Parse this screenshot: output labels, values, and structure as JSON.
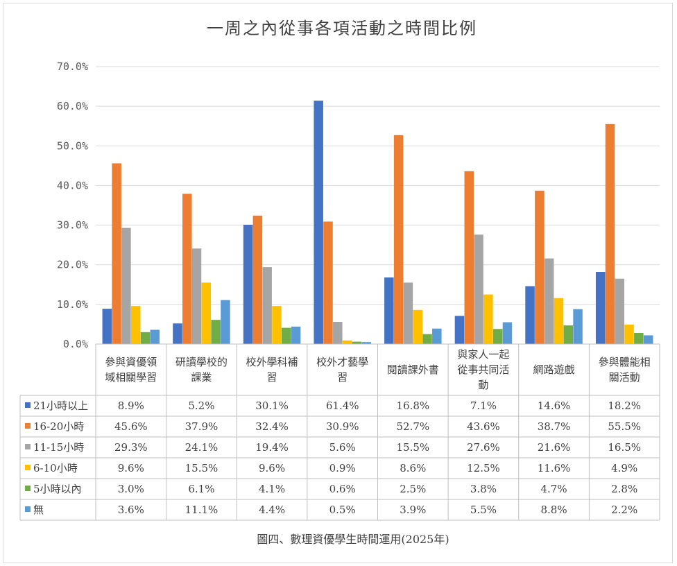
{
  "chart_data": {
    "type": "bar",
    "title": "一周之內從事各項活動之時間比例",
    "caption": "圖四、數理資優學生時間運用(2025年)",
    "categories": [
      [
        "參與資優領",
        "域相關學習"
      ],
      [
        "研讀學校的",
        "課業"
      ],
      [
        "校外學科補",
        "習"
      ],
      [
        "校外才藝學",
        "習"
      ],
      [
        "閱讀課外書"
      ],
      [
        "與家人一起",
        "從事共同活",
        "動"
      ],
      [
        "網路遊戲"
      ],
      [
        "參與體能相",
        "關活動"
      ]
    ],
    "ylim": [
      0,
      70
    ],
    "yticks": [
      "0.0%",
      "10.0%",
      "20.0%",
      "30.0%",
      "40.0%",
      "50.0%",
      "60.0%",
      "70.0%"
    ],
    "grid": true,
    "legend": "data-table",
    "series": [
      {
        "name": "21小時以上",
        "color": "#4472C4",
        "values": [
          8.9,
          5.2,
          30.1,
          61.4,
          16.8,
          7.1,
          14.6,
          18.2
        ],
        "labels": [
          "8.9%",
          "5.2%",
          "30.1%",
          "61.4%",
          "16.8%",
          "7.1%",
          "14.6%",
          "18.2%"
        ]
      },
      {
        "name": "16-20小時",
        "color": "#ED7D31",
        "values": [
          45.6,
          37.9,
          32.4,
          30.9,
          52.7,
          43.6,
          38.7,
          55.5
        ],
        "labels": [
          "45.6%",
          "37.9%",
          "32.4%",
          "30.9%",
          "52.7%",
          "43.6%",
          "38.7%",
          "55.5%"
        ]
      },
      {
        "name": "11-15小時",
        "color": "#A5A5A5",
        "values": [
          29.3,
          24.1,
          19.4,
          5.6,
          15.5,
          27.6,
          21.6,
          16.5
        ],
        "labels": [
          "29.3%",
          "24.1%",
          "19.4%",
          "5.6%",
          "15.5%",
          "27.6%",
          "21.6%",
          "16.5%"
        ]
      },
      {
        "name": "6-10小時",
        "color": "#FFC000",
        "values": [
          9.6,
          15.5,
          9.6,
          0.9,
          8.6,
          12.5,
          11.6,
          4.9
        ],
        "labels": [
          "9.6%",
          "15.5%",
          "9.6%",
          "0.9%",
          "8.6%",
          "12.5%",
          "11.6%",
          "4.9%"
        ]
      },
      {
        "name": "5小時以內",
        "color": "#70AD47",
        "values": [
          3.0,
          6.1,
          4.1,
          0.6,
          2.5,
          3.8,
          4.7,
          2.8
        ],
        "labels": [
          "3.0%",
          "6.1%",
          "4.1%",
          "0.6%",
          "2.5%",
          "3.8%",
          "4.7%",
          "2.8%"
        ]
      },
      {
        "name": "無",
        "color": "#5B9BD5",
        "values": [
          3.6,
          11.1,
          4.4,
          0.5,
          3.9,
          5.5,
          8.8,
          2.2
        ],
        "labels": [
          "3.6%",
          "11.1%",
          "4.4%",
          "0.5%",
          "3.9%",
          "5.5%",
          "8.8%",
          "2.2%"
        ]
      }
    ]
  }
}
